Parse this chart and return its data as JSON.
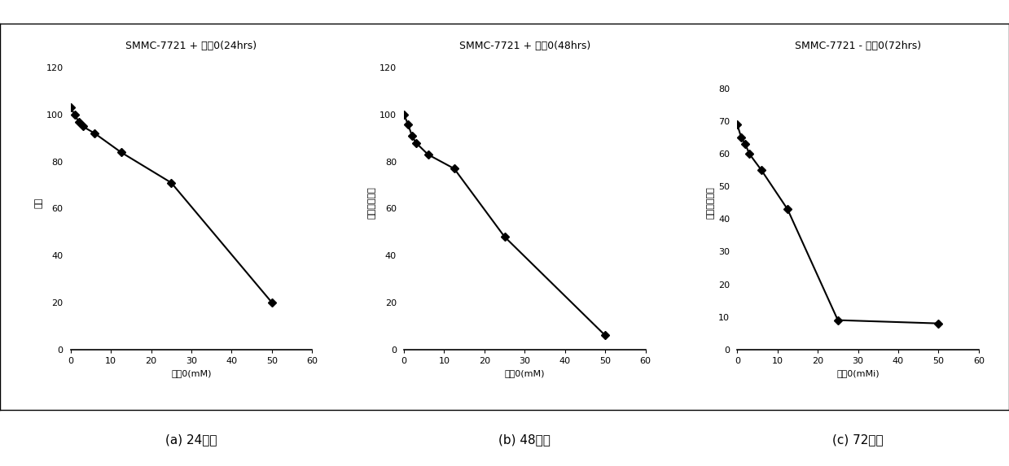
{
  "plots": [
    {
      "title": "SMMC-7721 + 产味0(24hrs)",
      "xlabel": "产味0(mM)",
      "ylabel": "活性",
      "x": [
        0,
        1,
        2,
        3,
        6,
        12.5,
        25,
        50
      ],
      "y": [
        103,
        100,
        97,
        95,
        92,
        84,
        71,
        20
      ],
      "ylim": [
        0,
        125
      ],
      "yticks": [
        0,
        20,
        40,
        60,
        80,
        100,
        120
      ],
      "xlim": [
        0,
        60
      ],
      "xticks": [
        0,
        10,
        20,
        30,
        40,
        50,
        60
      ],
      "caption": "(a) 24小时"
    },
    {
      "title": "SMMC-7721 + 产味0(48hrs)",
      "xlabel": "产味0(mM)",
      "ylabel": "活性性（％）",
      "x": [
        0,
        1,
        2,
        3,
        6,
        12.5,
        25,
        50
      ],
      "y": [
        100,
        96,
        91,
        88,
        83,
        77,
        48,
        6
      ],
      "ylim": [
        0,
        125
      ],
      "yticks": [
        0,
        20,
        40,
        60,
        80,
        100,
        120
      ],
      "xlim": [
        0,
        60
      ],
      "xticks": [
        0,
        10,
        20,
        30,
        40,
        50,
        60
      ],
      "caption": "(b) 48小时"
    },
    {
      "title": "SMMC-7721 - 产味0(72hrs)",
      "xlabel": "产味0(mMi)",
      "ylabel": "活性性（％）",
      "x": [
        0,
        1,
        2,
        3,
        6,
        12.5,
        25,
        50
      ],
      "y": [
        69,
        65,
        63,
        60,
        55,
        43,
        9,
        8
      ],
      "ylim": [
        0,
        90
      ],
      "yticks": [
        0,
        10,
        20,
        30,
        40,
        50,
        60,
        70,
        80
      ],
      "xlim": [
        0,
        60
      ],
      "xticks": [
        0,
        10,
        20,
        30,
        40,
        50,
        60
      ],
      "caption": "(c) 72小时"
    }
  ],
  "figure_bg": "#ffffff",
  "line_color": "#000000",
  "marker": "D",
  "marker_size": 5,
  "line_width": 1.5,
  "title_fontsize": 9,
  "label_fontsize": 8,
  "tick_fontsize": 8,
  "caption_fontsize": 11
}
